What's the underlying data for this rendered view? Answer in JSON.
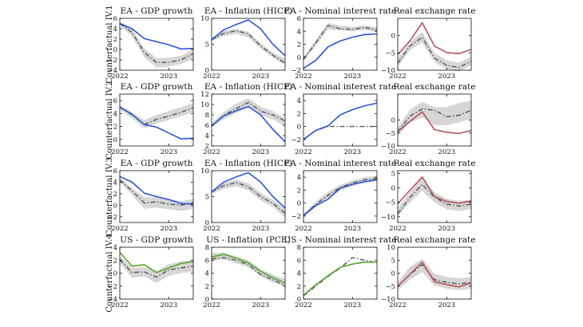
{
  "chart_data": {
    "type": "line",
    "layout": "4x4 grid of panels",
    "row_labels": [
      "Counterfactual IV.1",
      "Counterfactual IV.2",
      "Counterfactual IV.3",
      "Counterfactual IV.4"
    ],
    "x_ticks": [
      "2022",
      "2023"
    ],
    "colors": {
      "blue": "#2a55d6",
      "red": "#b5525d",
      "green": "#56a52b",
      "dash": "#555555",
      "band": "#d6d6d6",
      "axis": "#111111"
    },
    "panels": [
      [
        {
          "title": "EA - GDP growth",
          "ylim": [
            -4,
            6
          ],
          "yticks": [
            6,
            4,
            2,
            0,
            -2,
            -4
          ],
          "band": [
            [
              4.7,
              5.3
            ],
            [
              2.5,
              4
            ],
            [
              -1.5,
              0.2
            ],
            [
              -3.5,
              -1.7
            ],
            [
              -3.3,
              -1.6
            ],
            [
              -2.8,
              -1.2
            ],
            [
              -1.7,
              0
            ]
          ],
          "dash": [
            5,
            3.3,
            -0.6,
            -2.5,
            -2.5,
            -2,
            -0.8
          ],
          "solid": [
            5,
            4,
            2.1,
            1.5,
            0.9,
            0.1,
            0.2
          ],
          "solid_color": "blue"
        },
        {
          "title": "EA - Inflation (HICP)",
          "ylim": [
            0,
            10
          ],
          "yticks": [
            10,
            5,
            0
          ],
          "band": [
            [
              5.6,
              6.2
            ],
            [
              6.6,
              7.6
            ],
            [
              7,
              8
            ],
            [
              6.3,
              7.4
            ],
            [
              4.2,
              5.2
            ],
            [
              2.4,
              3.4
            ],
            [
              1,
              2.2
            ]
          ],
          "dash": [
            5.9,
            7.1,
            7.6,
            7,
            4.7,
            2.9,
            1.3
          ],
          "solid": [
            5.9,
            7.8,
            8.8,
            9.7,
            8,
            5,
            2.8
          ],
          "solid_color": "blue"
        },
        {
          "title": "EA - Nominal interest rate",
          "ylim": [
            -2,
            6
          ],
          "yticks": [
            6,
            4,
            2,
            0,
            -2
          ],
          "band": [
            [
              -0.6,
              0
            ],
            [
              1.7,
              2.6
            ],
            [
              4.3,
              5.3
            ],
            [
              4.1,
              4.9
            ],
            [
              4,
              4.7
            ],
            [
              4.2,
              4.9
            ],
            [
              3.9,
              4.6
            ]
          ],
          "dash": [
            -0.3,
            2.2,
            4.9,
            4.4,
            4.3,
            4.6,
            4.2
          ],
          "solid": [
            -1.7,
            -0.5,
            1.6,
            2.5,
            3.1,
            3.5,
            3.6
          ],
          "solid_color": "blue"
        },
        {
          "title": "Real exchange rate",
          "ylim": [
            -10,
            5
          ],
          "yticks": [
            0,
            -5,
            -10
          ],
          "band": [
            [
              -9,
              -6.5
            ],
            [
              -4.2,
              -1.8
            ],
            [
              -2,
              1
            ],
            [
              -7.6,
              -5
            ],
            [
              -9.8,
              -7.2
            ],
            [
              -10.4,
              -7.8
            ],
            [
              -8.5,
              -6
            ]
          ],
          "dash": [
            -8,
            -3,
            -0.5,
            -6.5,
            -8.6,
            -9.2,
            -7.4
          ],
          "solid": [
            -5.5,
            -1.5,
            3.7,
            -3,
            -4.9,
            -5.2,
            -4
          ],
          "solid_color": "red"
        }
      ],
      [
        {
          "title": "EA - GDP growth",
          "ylim": [
            -1,
            7
          ],
          "yticks": [
            6,
            4,
            2,
            0
          ],
          "band": [
            [
              4.6,
              5.3
            ],
            [
              3.3,
              4.2
            ],
            [
              1.7,
              3
            ],
            [
              2.5,
              3.8
            ],
            [
              3,
              4.4
            ],
            [
              3.6,
              5
            ],
            [
              4.2,
              5.6
            ]
          ],
          "dash": [
            5,
            3.8,
            2.3,
            3.1,
            3.6,
            4.2,
            4.9
          ],
          "solid": [
            5,
            3.9,
            2.3,
            1.9,
            1,
            0.1,
            0.2
          ],
          "solid_color": "blue"
        },
        {
          "title": "EA - Inflation (HICP)",
          "ylim": [
            2,
            12
          ],
          "yticks": [
            12,
            10,
            8,
            6,
            4,
            2
          ],
          "band": [
            [
              5.6,
              6.4
            ],
            [
              7.2,
              8.6
            ],
            [
              8.3,
              10.2
            ],
            [
              9.4,
              11.2
            ],
            [
              8,
              9.6
            ],
            [
              7.1,
              8.7
            ],
            [
              5.8,
              7.4
            ]
          ],
          "dash": [
            5.9,
            7.9,
            9.2,
            10.4,
            8.7,
            8,
            6.8
          ],
          "solid": [
            5.9,
            7.8,
            8.8,
            9.6,
            8,
            5.2,
            2.8
          ],
          "solid_color": "blue"
        },
        {
          "title": "EA - Nominal interest rate",
          "ylim": [
            -3,
            5
          ],
          "yticks": [
            4,
            2,
            0,
            -2
          ],
          "band": [],
          "dash": [
            -2,
            -0.6,
            0,
            0,
            0,
            0,
            0
          ],
          "solid": [
            -2,
            -0.6,
            0.1,
            1.8,
            2.6,
            3.2,
            3.6
          ],
          "solid_color": "blue"
        },
        {
          "title": "Real exchange rate",
          "ylim": [
            -10,
            10
          ],
          "yticks": [
            0,
            -5,
            -10
          ],
          "band": [
            [
              -6,
              -3
            ],
            [
              -1,
              4
            ],
            [
              1,
              7
            ],
            [
              -2,
              5
            ],
            [
              -2,
              5
            ],
            [
              -1,
              6.5
            ],
            [
              0.5,
              7.5
            ]
          ],
          "dash": [
            -4.6,
            1.5,
            4.3,
            3.8,
            1.3,
            1.8,
            3.8
          ],
          "solid": [
            -4.6,
            -0.5,
            3.2,
            -3.7,
            -4.7,
            -5.2,
            -4
          ],
          "solid_color": "red"
        }
      ],
      [
        {
          "title": "EA - GDP growth",
          "ylim": [
            -3,
            6
          ],
          "yticks": [
            6,
            4,
            2,
            0,
            -2
          ],
          "band": [
            [
              4,
              4.8
            ],
            [
              1.8,
              3
            ],
            [
              -0.6,
              1.4
            ],
            [
              -0.4,
              1.4
            ],
            [
              -0.7,
              1.1
            ],
            [
              -1,
              0.7
            ],
            [
              -0.6,
              1.1
            ]
          ],
          "dash": [
            4.4,
            2.5,
            0.4,
            0.6,
            0.2,
            0,
            0.4
          ],
          "solid": [
            5,
            4,
            2.1,
            1.5,
            1,
            0.3,
            0.2
          ],
          "solid_color": "blue"
        },
        {
          "title": "EA - Inflation (HICP)",
          "ylim": [
            0,
            10
          ],
          "yticks": [
            10,
            5,
            0
          ],
          "band": [
            [
              5.5,
              6.2
            ],
            [
              6.5,
              7.6
            ],
            [
              7,
              8.3
            ],
            [
              6.2,
              7.6
            ],
            [
              4.3,
              5.7
            ],
            [
              3,
              4.4
            ],
            [
              1,
              2.6
            ]
          ],
          "dash": [
            5.9,
            7.1,
            7.7,
            6.9,
            5,
            3.7,
            1.8
          ],
          "solid": [
            5.9,
            7.8,
            8.8,
            9.6,
            7.8,
            5,
            2.8
          ],
          "solid_color": "blue"
        },
        {
          "title": "EA - Nominal interest rate",
          "ylim": [
            -3,
            5
          ],
          "yticks": [
            4,
            2,
            0,
            -2
          ],
          "band": [
            [
              -2.2,
              -1.7
            ],
            [
              -0.6,
              0.2
            ],
            [
              0.8,
              1.7
            ],
            [
              1.9,
              2.8
            ],
            [
              2.6,
              3.5
            ],
            [
              3.2,
              4
            ],
            [
              3.4,
              4.2
            ]
          ],
          "dash": [
            -1.9,
            -0.2,
            1.2,
            2.4,
            3.1,
            3.6,
            3.8
          ],
          "solid": [
            -1.9,
            -0.4,
            0.6,
            2.3,
            2.9,
            3.3,
            3.6
          ],
          "solid_color": "blue"
        },
        {
          "title": "Real exchange rate",
          "ylim": [
            -12,
            6
          ],
          "yticks": [
            5,
            0,
            -5,
            -10
          ],
          "band": [
            [
              -10,
              -7
            ],
            [
              -5,
              -1.5
            ],
            [
              -1,
              3.5
            ],
            [
              -5,
              -1.5
            ],
            [
              -7.4,
              -3.8
            ],
            [
              -8,
              -4.5
            ],
            [
              -7.3,
              -4
            ]
          ],
          "dash": [
            -9,
            -3.3,
            1.2,
            -3.2,
            -5.6,
            -6.3,
            -5.6
          ],
          "solid": [
            -5.5,
            -0.8,
            3.8,
            -3,
            -4.7,
            -5.3,
            -4.5
          ],
          "solid_color": "red"
        }
      ],
      [
        {
          "title": "US - GDP growth",
          "ylim": [
            -4,
            4
          ],
          "yticks": [
            4,
            2,
            0,
            -2,
            -4
          ],
          "band": [
            [
              1.6,
              2.6
            ],
            [
              -0.7,
              0.9
            ],
            [
              -0.5,
              0.9
            ],
            [
              -1.5,
              0.3
            ],
            [
              -0.4,
              1.4
            ],
            [
              0,
              1.8
            ],
            [
              0.3,
              2
            ]
          ],
          "dash": [
            2.1,
            0.1,
            0.2,
            -0.6,
            0.5,
            0.8,
            1.1
          ],
          "solid": [
            3.2,
            1.1,
            1.3,
            0.1,
            0.8,
            1.5,
            1.8
          ],
          "solid_color": "green"
        },
        {
          "title": "US - Inflation (PCE)",
          "ylim": [
            0,
            8
          ],
          "yticks": [
            8,
            6,
            4,
            2,
            0
          ],
          "band": [
            [
              5.9,
              7.1
            ],
            [
              6.1,
              7.2
            ],
            [
              5.5,
              6.6
            ],
            [
              4.9,
              6
            ],
            [
              3.5,
              4.6
            ],
            [
              2.6,
              3.7
            ],
            [
              1.9,
              3.1
            ]
          ],
          "dash": [
            6.2,
            6.4,
            6,
            5.3,
            3.8,
            3,
            2.1
          ],
          "solid": [
            6.5,
            6.9,
            6.3,
            5.6,
            4.3,
            3.3,
            2.5
          ],
          "solid_color": "green"
        },
        {
          "title": "US - Nominal interest rate",
          "ylim": [
            0,
            8
          ],
          "yticks": [
            8,
            6,
            4,
            2,
            0
          ],
          "band": [],
          "dash": [
            0.5,
            2,
            3.5,
            4.8,
            6.4,
            6,
            5.6
          ],
          "solid": [
            0.6,
            2.2,
            3.6,
            4.9,
            5.4,
            5.7,
            5.7
          ],
          "solid_color": "green"
        },
        {
          "title": "Real exchange rate",
          "ylim": [
            -10,
            10
          ],
          "yticks": [
            10,
            5,
            0,
            -5,
            -10
          ],
          "band": [
            [
              -6.5,
              -3.5
            ],
            [
              -2.5,
              2.5
            ],
            [
              0.5,
              5.5
            ],
            [
              -4.8,
              -0.2
            ],
            [
              -6,
              -1.5
            ],
            [
              -6.5,
              -2
            ],
            [
              -6,
              -1.5
            ]
          ],
          "dash": [
            -5,
            -0.5,
            3.3,
            -2.5,
            -3.5,
            -4.2,
            -3.5
          ],
          "solid": [
            -5,
            -0.5,
            4.3,
            -3.3,
            -4.4,
            -5.3,
            -3.7
          ],
          "solid_color": "red"
        }
      ]
    ]
  }
}
